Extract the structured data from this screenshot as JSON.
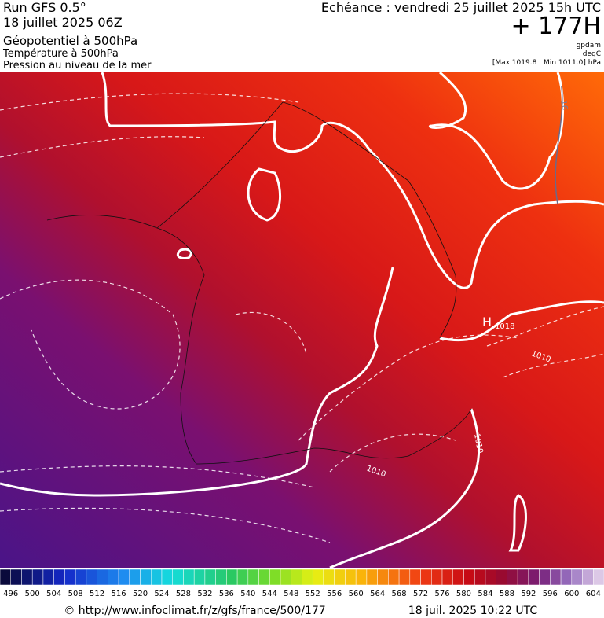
{
  "header": {
    "run": "Run GFS 0.5°",
    "date": "18 juillet 2025 06Z",
    "field": "Géopotentiel à 500hPa",
    "field2": "Température à 500hPa",
    "field3": "Pression au niveau de la mer",
    "valid": "Echéance : vendredi 25 juillet 2025 15h UTC",
    "lead": "+ 177H",
    "unit1": "gpdam",
    "unit2": "degC",
    "range": "[Max 1019.8 | Min 1011.0] hPa"
  },
  "map": {
    "labels": [
      "H",
      "1018",
      "1010",
      "1010",
      "1010",
      "16"
    ]
  },
  "colorbar": {
    "labels": [
      496,
      500,
      504,
      508,
      512,
      516,
      520,
      524,
      528,
      532,
      536,
      540,
      544,
      548,
      552,
      556,
      560,
      564,
      568,
      572,
      576,
      580,
      584,
      588,
      592,
      596,
      600,
      604
    ]
  },
  "footer": {
    "source": "© http://www.infoclimat.fr/z/gfs/france/500/177",
    "stamp": "18 juil. 2025 10:22 UTC"
  }
}
